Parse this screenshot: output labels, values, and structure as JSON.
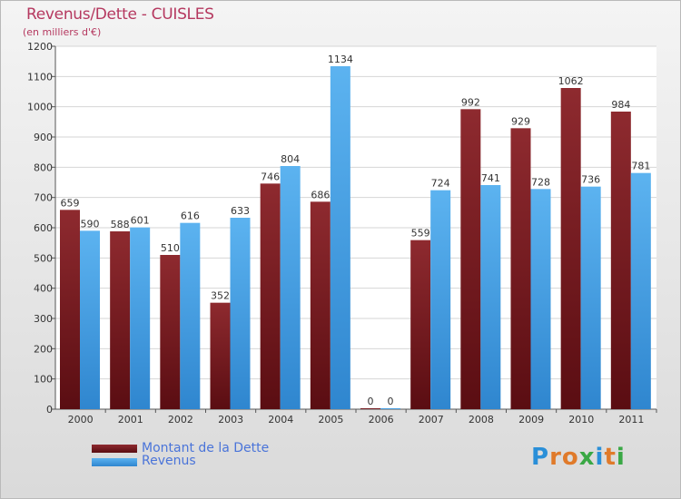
{
  "chart_data": {
    "type": "bar",
    "title": "Revenus/Dette - CUISLES",
    "subtitle": "(en milliers d'€)",
    "categories": [
      "2000",
      "2001",
      "2002",
      "2003",
      "2004",
      "2005",
      "2006",
      "2007",
      "2008",
      "2009",
      "2010",
      "2011"
    ],
    "series": [
      {
        "name": "Montant de la Dette",
        "color": "#7a1f24",
        "values": [
          659,
          588,
          510,
          352,
          746,
          686,
          0,
          559,
          992,
          929,
          1062,
          984
        ]
      },
      {
        "name": "Revenus",
        "color": "#4aa3e8",
        "values": [
          590,
          601,
          616,
          633,
          804,
          1134,
          0,
          724,
          741,
          728,
          736,
          781
        ]
      }
    ],
    "ylim": [
      0,
      1200
    ],
    "yticks": [
      0,
      100,
      200,
      300,
      400,
      500,
      600,
      700,
      800,
      900,
      1000,
      1100,
      1200
    ],
    "grid": true,
    "legend_position": "bottom-left"
  },
  "logo": {
    "letters": [
      {
        "ch": "P",
        "color": "#2a8fd8"
      },
      {
        "ch": "r",
        "color": "#e07a2a"
      },
      {
        "ch": "o",
        "color": "#e07a2a"
      },
      {
        "ch": "x",
        "color": "#3aa845"
      },
      {
        "ch": "i",
        "color": "#2a8fd8"
      },
      {
        "ch": "t",
        "color": "#e07a2a"
      },
      {
        "ch": "i",
        "color": "#3aa845"
      }
    ]
  }
}
